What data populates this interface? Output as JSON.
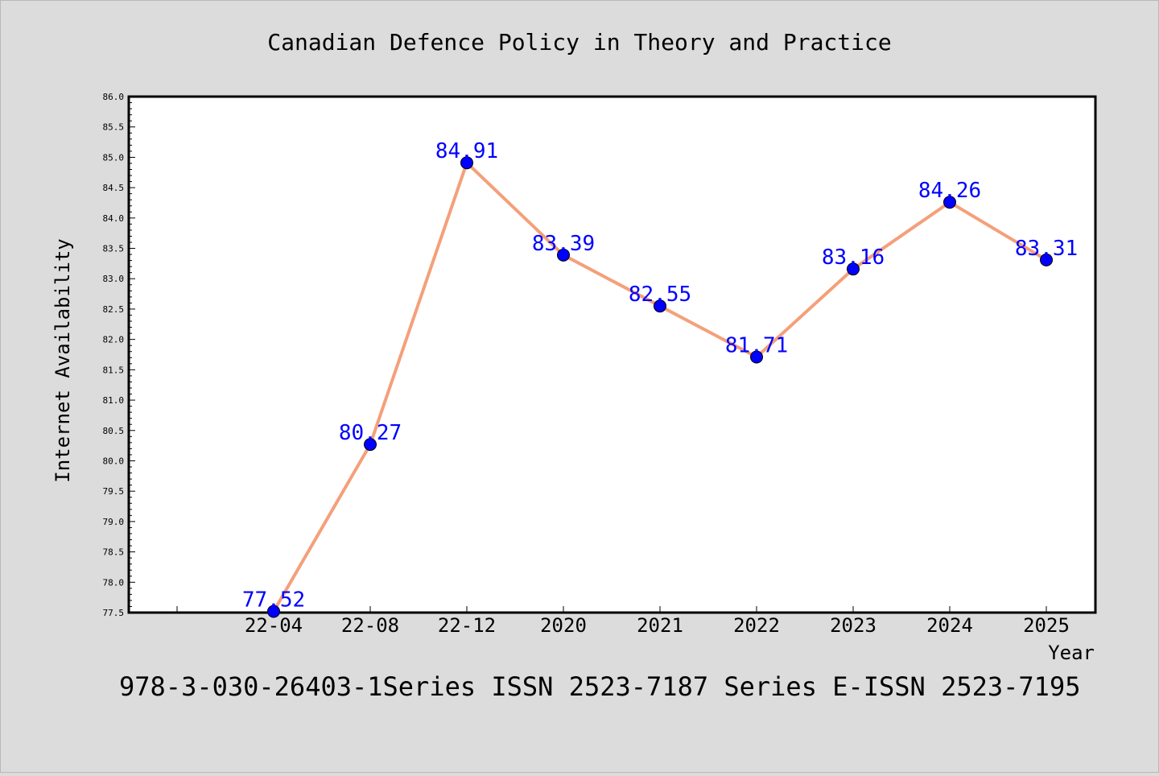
{
  "chart_data": {
    "type": "line",
    "title": "Canadian Defence Policy in Theory and Practice",
    "xlabel": "Year",
    "ylabel": "Internet Availability",
    "footer": "978-3-030-26403-1Series ISSN 2523-7187 Series E-ISSN 2523-7195",
    "categories": [
      "22-04",
      "22-08",
      "22-12",
      "2020",
      "2021",
      "2022",
      "2023",
      "2024",
      "2025"
    ],
    "values": [
      77.52,
      80.27,
      84.91,
      83.39,
      82.55,
      81.71,
      83.16,
      84.26,
      83.31
    ],
    "data_labels": [
      "77.52",
      "80.27",
      "84.91",
      "83.39",
      "82.55",
      "81.71",
      "83.16",
      "84.26",
      "83.31"
    ],
    "ylim": [
      77.5,
      86.0
    ],
    "yticks": [
      "77.5",
      "78.0",
      "78.5",
      "79.0",
      "79.5",
      "80.0",
      "80.5",
      "81.0",
      "81.5",
      "82.0",
      "82.5",
      "83.0",
      "83.5",
      "84.0",
      "84.5",
      "85.0",
      "85.5",
      "86.0"
    ],
    "grid": false,
    "colors": {
      "line": "#f4a07a",
      "marker": "#0000ff",
      "label": "#0000ff",
      "background": "#dcdcdc",
      "plot_background": "#ffffff"
    }
  }
}
